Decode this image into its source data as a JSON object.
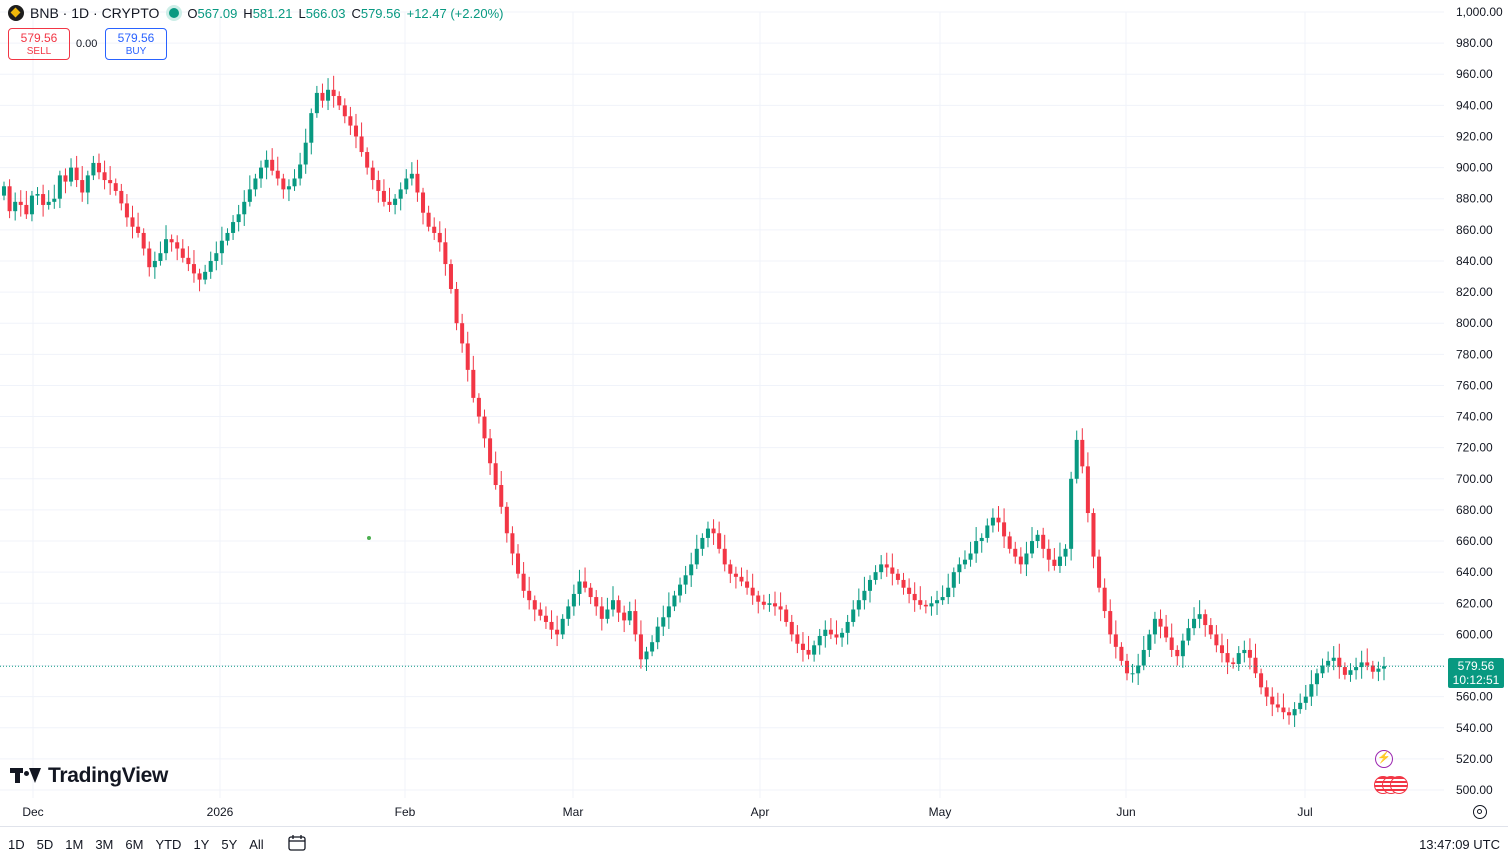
{
  "header": {
    "symbol": "BNB · 1D · CRYPTO",
    "o_label": "O",
    "o_value": "567.09",
    "h_label": "H",
    "h_value": "581.21",
    "l_label": "L",
    "l_value": "566.03",
    "c_label": "C",
    "c_value": "579.56",
    "change": "+12.47 (+2.20%)"
  },
  "trade": {
    "sell_price": "579.56",
    "sell_label": "SELL",
    "spread": "0.00",
    "buy_price": "579.56",
    "buy_label": "BUY"
  },
  "logo": {
    "text": "TradingView"
  },
  "price_label": {
    "price": "579.56",
    "countdown": "10:12:51"
  },
  "bottom_bar": {
    "ranges": [
      "1D",
      "5D",
      "1M",
      "3M",
      "6M",
      "YTD",
      "1Y",
      "5Y",
      "All"
    ],
    "time": "13:47:09 UTC"
  },
  "colors": {
    "up": "#089981",
    "down": "#f23645",
    "grid": "#f0f3fa",
    "text": "#131722"
  },
  "icons": [
    "coin-icon",
    "live-dot-icon",
    "calendar-icon",
    "settings-icon",
    "bolt-icon",
    "flags-icon"
  ],
  "chart_data": {
    "type": "candlestick",
    "title": "BNB · 1D · CRYPTO",
    "y_ticks": [
      "500.00",
      "520.00",
      "540.00",
      "560.00",
      "580.00",
      "600.00",
      "620.00",
      "640.00",
      "660.00",
      "680.00",
      "700.00",
      "720.00",
      "740.00",
      "760.00",
      "780.00",
      "800.00",
      "820.00",
      "840.00",
      "860.00",
      "880.00",
      "900.00",
      "920.00",
      "940.00",
      "960.00",
      "980.00",
      "1,000.00"
    ],
    "ylim": [
      500,
      1000
    ],
    "x_ticks": [
      "Dec",
      "2026",
      "Feb",
      "Mar",
      "Apr",
      "May",
      "Jun",
      "Jul"
    ],
    "grid": true,
    "last_price": 579.56,
    "close": [
      888,
      872,
      878,
      876,
      870,
      882,
      883,
      876,
      878,
      880,
      895,
      891,
      900,
      892,
      884,
      895,
      903,
      897,
      892,
      890,
      885,
      877,
      868,
      862,
      858,
      848,
      836,
      840,
      845,
      854,
      852,
      848,
      842,
      838,
      832,
      828,
      833,
      840,
      845,
      853,
      858,
      865,
      870,
      878,
      886,
      893,
      900,
      905,
      898,
      893,
      886,
      888,
      893,
      902,
      916,
      935,
      948,
      943,
      950,
      946,
      940,
      933,
      927,
      920,
      910,
      900,
      892,
      885,
      878,
      876,
      880,
      886,
      893,
      896,
      884,
      871,
      862,
      858,
      852,
      838,
      822,
      800,
      787,
      770,
      752,
      740,
      726,
      710,
      696,
      682,
      665,
      652,
      639,
      628,
      622,
      616,
      612,
      608,
      603,
      600,
      610,
      618,
      626,
      634,
      630,
      624,
      618,
      610,
      616,
      622,
      614,
      609,
      615,
      600,
      584,
      589,
      595,
      605,
      611,
      618,
      625,
      632,
      638,
      645,
      655,
      662,
      668,
      665,
      655,
      645,
      639,
      637,
      634,
      630,
      625,
      621,
      619,
      620,
      618,
      616,
      608,
      600,
      594,
      590,
      587,
      593,
      599,
      603,
      600,
      598,
      601,
      608,
      616,
      622,
      628,
      635,
      640,
      645,
      643,
      639,
      635,
      630,
      626,
      622,
      619,
      618,
      620,
      622,
      624,
      630,
      640,
      645,
      648,
      652,
      660,
      662,
      670,
      675,
      672,
      663,
      655,
      650,
      645,
      652,
      660,
      664,
      655,
      648,
      644,
      650,
      655,
      700,
      725,
      708,
      678,
      650,
      630,
      615,
      600,
      592,
      583,
      575,
      575,
      580,
      590,
      600,
      610,
      605,
      598,
      590,
      586,
      596,
      604,
      610,
      613,
      606,
      600,
      593,
      588,
      582,
      581,
      588,
      590,
      585,
      575,
      566,
      560,
      555,
      553,
      550,
      548,
      552,
      556,
      560,
      568,
      575,
      580,
      583,
      585,
      579,
      574,
      577,
      579,
      582,
      580,
      576,
      578,
      579.56
    ]
  }
}
